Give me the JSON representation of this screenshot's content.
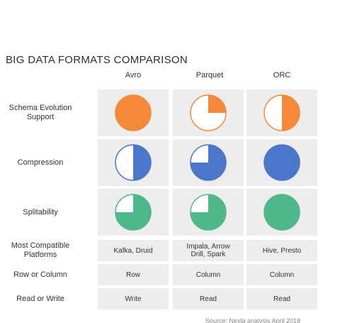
{
  "title": "BIG DATA FORMATS COMPARISON",
  "columns": [
    "Avro",
    "Parquet",
    "ORC"
  ],
  "colors": {
    "orange": "#f5893a",
    "blue": "#4a77c9",
    "green": "#4fb88a",
    "cell_bg": "#ededed"
  },
  "rows": [
    {
      "label": "Schema Evolution\nSupport",
      "fills": [
        1.0,
        0.25,
        0.5
      ],
      "color": "#f5893a"
    },
    {
      "label": "Compression",
      "fills": [
        0.5,
        0.75,
        1.0
      ],
      "color": "#4a77c9"
    },
    {
      "label": "Splitability",
      "fills": [
        0.75,
        0.75,
        1.0
      ],
      "color": "#4fb88a"
    },
    {
      "label": "Most Compatible\nPlatforms",
      "values": [
        "Kafka, Druid",
        "Impala, Arrow\nDrill, Spark",
        "Hive, Presto"
      ]
    },
    {
      "label": "Row or Column",
      "values": [
        "Row",
        "Column",
        "Column"
      ]
    },
    {
      "label": "Read or Write",
      "values": [
        "Write",
        "Read",
        "Read"
      ]
    }
  ],
  "source": "Source: Nexla analysis April 2018"
}
